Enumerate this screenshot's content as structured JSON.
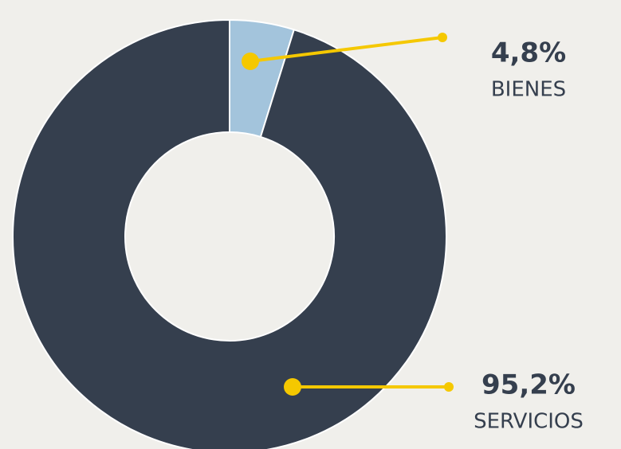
{
  "chart_data": {
    "type": "pie",
    "donut": true,
    "categories": [
      "BIENES",
      "SERVICIOS"
    ],
    "values": [
      4.8,
      95.2
    ],
    "value_labels": [
      "4,8%",
      "95,2%"
    ],
    "colors": [
      "#a3c4dc",
      "#353f4e"
    ],
    "leader_color": "#f5c800"
  }
}
